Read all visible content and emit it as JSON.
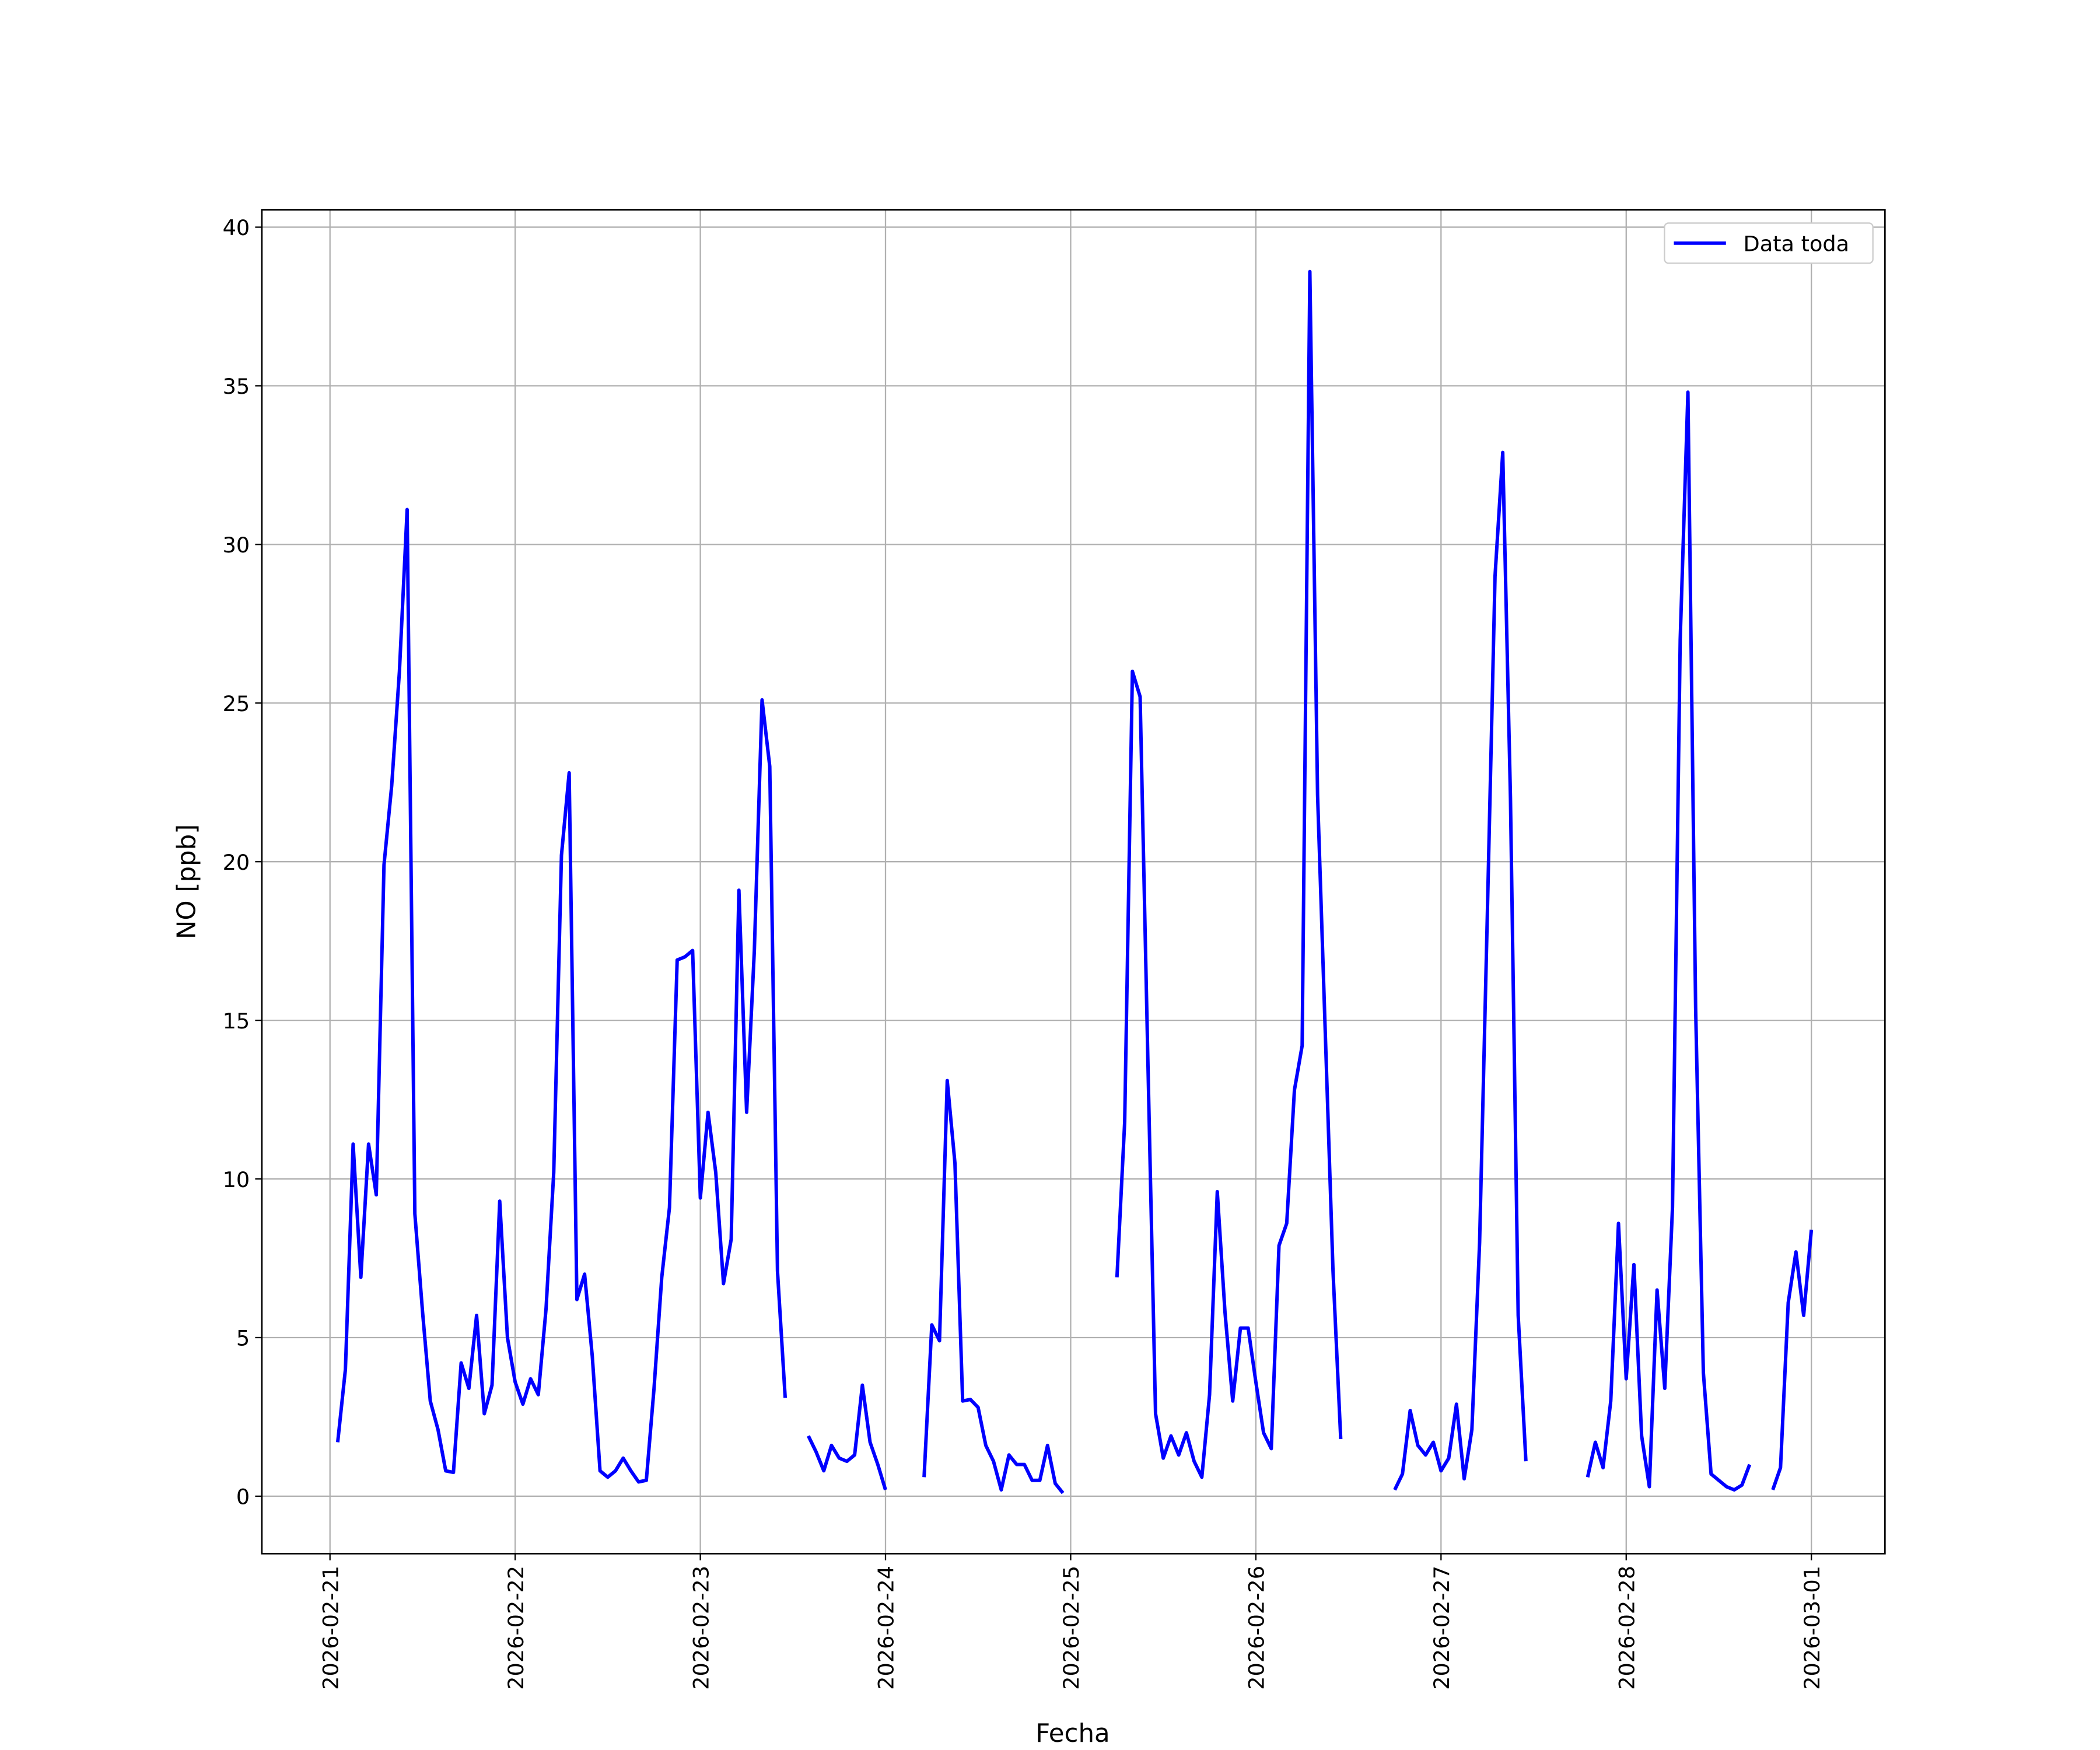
{
  "chart_data": {
    "type": "line",
    "xlabel": "Fecha",
    "ylabel": "NO [ppb]",
    "x": [
      "2026-02-21 01:00",
      "2026-02-21 02:00",
      "2026-02-21 03:00",
      "2026-02-21 04:00",
      "2026-02-21 05:00",
      "2026-02-21 06:00",
      "2026-02-21 07:00",
      "2026-02-21 08:00",
      "2026-02-21 09:00",
      "2026-02-21 10:00",
      "2026-02-21 11:00",
      "2026-02-21 12:00",
      "2026-02-21 13:00",
      "2026-02-21 14:00",
      "2026-02-21 15:00",
      "2026-02-21 16:00",
      "2026-02-21 17:00",
      "2026-02-21 18:00",
      "2026-02-21 19:00",
      "2026-02-21 20:00",
      "2026-02-21 21:00",
      "2026-02-21 22:00",
      "2026-02-21 23:00",
      "2026-02-22 00:00",
      "2026-02-22 01:00",
      "2026-02-22 02:00",
      "2026-02-22 03:00",
      "2026-02-22 04:00",
      "2026-02-22 05:00",
      "2026-02-22 06:00",
      "2026-02-22 07:00",
      "2026-02-22 08:00",
      "2026-02-22 09:00",
      "2026-02-22 10:00",
      "2026-02-22 11:00",
      "2026-02-22 12:00",
      "2026-02-22 13:00",
      "2026-02-22 14:00",
      "2026-02-22 15:00",
      "2026-02-22 16:00",
      "2026-02-22 17:00",
      "2026-02-22 18:00",
      "2026-02-22 19:00",
      "2026-02-22 20:00",
      "2026-02-22 21:00",
      "2026-02-22 22:00",
      "2026-02-22 23:00",
      "2026-02-23 00:00",
      "2026-02-23 01:00",
      "2026-02-23 02:00",
      "2026-02-23 03:00",
      "2026-02-23 04:00",
      "2026-02-23 05:00",
      "2026-02-23 06:00",
      "2026-02-23 07:00",
      "2026-02-23 08:00",
      "2026-02-23 09:00",
      "2026-02-23 10:00",
      "2026-02-23 11:00",
      "2026-02-23 12:00",
      "2026-02-23 13:00",
      "2026-02-23 14:00",
      "2026-02-23 15:00",
      "2026-02-23 16:00",
      "2026-02-23 17:00",
      "2026-02-23 18:00",
      "2026-02-23 19:00",
      "2026-02-23 20:00",
      "2026-02-23 21:00",
      "2026-02-23 22:00",
      "2026-02-23 23:00",
      "2026-02-24 00:00",
      "2026-02-24 01:00",
      "2026-02-24 02:00",
      "2026-02-24 03:00",
      "2026-02-24 04:00",
      "2026-02-24 05:00",
      "2026-02-24 06:00",
      "2026-02-24 07:00",
      "2026-02-24 08:00",
      "2026-02-24 09:00",
      "2026-02-24 10:00",
      "2026-02-24 11:00",
      "2026-02-24 12:00",
      "2026-02-24 13:00",
      "2026-02-24 14:00",
      "2026-02-24 15:00",
      "2026-02-24 16:00",
      "2026-02-24 17:00",
      "2026-02-24 18:00",
      "2026-02-24 19:00",
      "2026-02-24 20:00",
      "2026-02-24 21:00",
      "2026-02-24 22:00",
      "2026-02-24 23:00",
      "2026-02-25 00:00",
      "2026-02-25 01:00",
      "2026-02-25 02:00",
      "2026-02-25 03:00",
      "2026-02-25 04:00",
      "2026-02-25 05:00",
      "2026-02-25 06:00",
      "2026-02-25 07:00",
      "2026-02-25 08:00",
      "2026-02-25 09:00",
      "2026-02-25 10:00",
      "2026-02-25 11:00",
      "2026-02-25 12:00",
      "2026-02-25 13:00",
      "2026-02-25 14:00",
      "2026-02-25 15:00",
      "2026-02-25 16:00",
      "2026-02-25 17:00",
      "2026-02-25 18:00",
      "2026-02-25 19:00",
      "2026-02-25 20:00",
      "2026-02-25 21:00",
      "2026-02-25 22:00",
      "2026-02-25 23:00",
      "2026-02-26 00:00",
      "2026-02-26 01:00",
      "2026-02-26 02:00",
      "2026-02-26 03:00",
      "2026-02-26 04:00",
      "2026-02-26 05:00",
      "2026-02-26 06:00",
      "2026-02-26 07:00",
      "2026-02-26 08:00",
      "2026-02-26 09:00",
      "2026-02-26 10:00",
      "2026-02-26 11:00",
      "2026-02-26 12:00",
      "2026-02-26 13:00",
      "2026-02-26 14:00",
      "2026-02-26 15:00",
      "2026-02-26 16:00",
      "2026-02-26 17:00",
      "2026-02-26 18:00",
      "2026-02-26 19:00",
      "2026-02-26 20:00",
      "2026-02-26 21:00",
      "2026-02-26 22:00",
      "2026-02-26 23:00",
      "2026-02-27 00:00",
      "2026-02-27 01:00",
      "2026-02-27 02:00",
      "2026-02-27 03:00",
      "2026-02-27 04:00",
      "2026-02-27 05:00",
      "2026-02-27 06:00",
      "2026-02-27 07:00",
      "2026-02-27 08:00",
      "2026-02-27 09:00",
      "2026-02-27 10:00",
      "2026-02-27 11:00",
      "2026-02-27 12:00",
      "2026-02-27 13:00",
      "2026-02-27 14:00",
      "2026-02-27 15:00",
      "2026-02-27 16:00",
      "2026-02-27 17:00",
      "2026-02-27 18:00",
      "2026-02-27 19:00",
      "2026-02-27 20:00",
      "2026-02-27 21:00",
      "2026-02-27 22:00",
      "2026-02-27 23:00",
      "2026-02-28 00:00",
      "2026-02-28 01:00",
      "2026-02-28 02:00",
      "2026-02-28 03:00",
      "2026-02-28 04:00",
      "2026-02-28 05:00",
      "2026-02-28 06:00",
      "2026-02-28 07:00",
      "2026-02-28 08:00",
      "2026-02-28 09:00",
      "2026-02-28 10:00",
      "2026-02-28 11:00",
      "2026-02-28 12:00",
      "2026-02-28 13:00",
      "2026-02-28 14:00",
      "2026-02-28 15:00",
      "2026-02-28 16:00",
      "2026-02-28 17:00",
      "2026-02-28 18:00",
      "2026-02-28 19:00",
      "2026-02-28 20:00",
      "2026-02-28 21:00",
      "2026-02-28 22:00",
      "2026-02-28 23:00",
      "2026-03-01 00:00"
    ],
    "series": [
      {
        "name": "Data toda",
        "color": "#0000ff",
        "values": [
          1.7,
          4.0,
          11.1,
          6.9,
          11.1,
          9.5,
          19.9,
          22.4,
          26.0,
          31.1,
          8.9,
          5.8,
          3.0,
          2.1,
          0.8,
          0.75,
          4.2,
          3.4,
          5.7,
          2.6,
          3.5,
          9.3,
          5.0,
          3.6,
          2.9,
          3.7,
          3.2,
          5.9,
          10.2,
          20.2,
          22.8,
          6.2,
          7.0,
          4.4,
          0.8,
          0.6,
          0.8,
          1.2,
          0.8,
          0.45,
          0.5,
          3.4,
          6.9,
          9.1,
          16.9,
          17.0,
          17.2,
          9.4,
          12.1,
          10.2,
          6.7,
          8.1,
          19.1,
          12.1,
          17.2,
          25.1,
          23.0,
          7.1,
          3.1,
          null,
          null,
          1.9,
          1.4,
          0.8,
          1.6,
          1.2,
          1.1,
          1.3,
          3.5,
          1.7,
          1.0,
          0.2,
          null,
          null,
          null,
          null,
          0.6,
          5.4,
          4.9,
          13.1,
          10.5,
          3.0,
          3.05,
          2.8,
          1.6,
          1.1,
          0.2,
          1.3,
          1.0,
          1.0,
          0.5,
          0.5,
          1.6,
          0.4,
          0.1,
          null,
          null,
          null,
          null,
          null,
          null,
          6.9,
          11.8,
          26.0,
          25.2,
          13.8,
          2.6,
          1.2,
          1.9,
          1.3,
          2.0,
          1.1,
          0.6,
          3.2,
          9.6,
          5.8,
          3.0,
          5.3,
          5.3,
          3.6,
          2.0,
          1.5,
          7.9,
          8.6,
          12.8,
          14.2,
          38.6,
          22.1,
          14.6,
          7.1,
          1.8,
          null,
          null,
          null,
          null,
          null,
          null,
          0.2,
          0.7,
          2.7,
          1.6,
          1.3,
          1.7,
          0.8,
          1.2,
          2.9,
          0.55,
          2.1,
          8.0,
          18.3,
          29.0,
          32.9,
          22.0,
          5.7,
          1.1,
          null,
          null,
          null,
          null,
          null,
          null,
          null,
          0.6,
          1.7,
          0.9,
          3.0,
          8.6,
          3.7,
          7.3,
          1.9,
          0.3,
          6.5,
          3.4,
          9.1,
          27.0,
          34.8,
          15.4,
          3.9,
          0.7,
          0.5,
          0.3,
          0.2,
          0.35,
          1.0,
          null,
          null,
          0.2,
          0.9,
          6.1,
          7.7,
          5.7,
          8.4
        ]
      }
    ],
    "xlim": [
      "2026-02-20 15:10",
      "2026-03-01 09:32"
    ],
    "xticks": [
      "2026-02-21",
      "2026-02-22",
      "2026-02-23",
      "2026-02-24",
      "2026-02-25",
      "2026-02-26",
      "2026-02-27",
      "2026-02-28",
      "2026-03-01"
    ],
    "ylim": [
      -1.81,
      40.55
    ],
    "yticks": [
      0,
      5,
      10,
      15,
      20,
      25,
      30,
      35,
      40
    ],
    "grid": true,
    "legend": "upper right"
  }
}
